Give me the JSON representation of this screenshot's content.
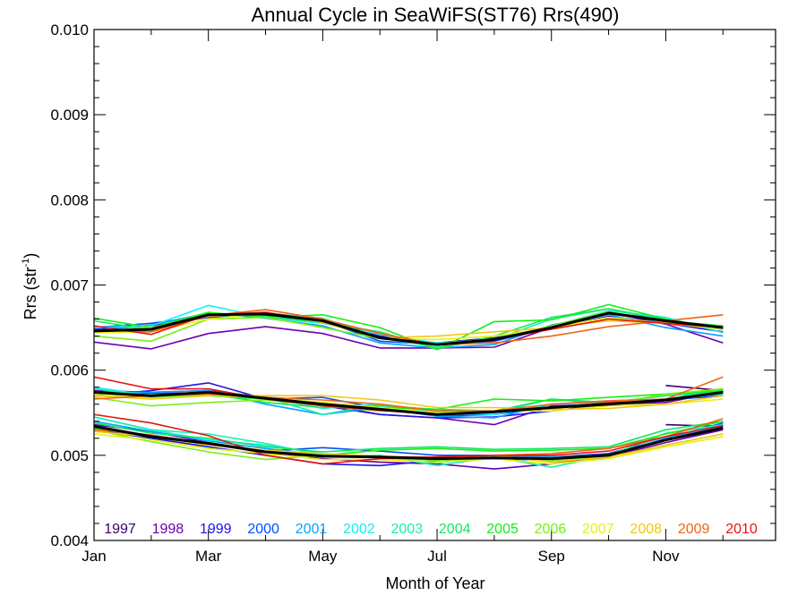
{
  "chart_data": {
    "type": "line",
    "title": "Annual Cycle in SeaWiFS(ST76) Rrs(490)",
    "xlabel": "Month of Year",
    "ylabel": "Rrs (str",
    "ylabel_superscript": "-1",
    "ylabel_close": ")",
    "xlim": [
      1,
      12.92
    ],
    "ylim": [
      0.004,
      0.01
    ],
    "x_ticks": [
      1,
      3,
      5,
      7,
      9,
      11
    ],
    "x_tick_labels": [
      "Jan",
      "Mar",
      "May",
      "Jul",
      "Sep",
      "Nov"
    ],
    "y_ticks": [
      0.004,
      0.005,
      0.006,
      0.007,
      0.008,
      0.009,
      0.01
    ],
    "y_tick_labels": [
      "0.004",
      "0.005",
      "0.006",
      "0.007",
      "0.008",
      "0.009",
      "0.010"
    ],
    "grid": false,
    "legend_placement": "bottom inside plot",
    "years": [
      "1997",
      "1998",
      "1999",
      "2000",
      "2001",
      "2002",
      "2003",
      "2004",
      "2005",
      "2006",
      "2007",
      "2008",
      "2009",
      "2010"
    ],
    "year_colors": [
      "#3c0070",
      "#6a00b0",
      "#1e14e6",
      "#0050ff",
      "#0aa0ff",
      "#14f0f0",
      "#14f0b4",
      "#14e664",
      "#14f014",
      "#78f014",
      "#e6f014",
      "#f0c814",
      "#f06414",
      "#e61414"
    ],
    "x": [
      1,
      2,
      3,
      4,
      5,
      6,
      7,
      8,
      9,
      10,
      11,
      12
    ],
    "groups": [
      {
        "mean": [
          0.00646,
          0.00648,
          0.00665,
          0.00666,
          0.00658,
          0.00638,
          0.0063,
          0.00636,
          0.0065,
          0.00667,
          0.00658,
          0.0065
        ],
        "series": [
          {
            "year": "1998",
            "values": [
              0.00633,
              0.00625,
              0.00643,
              0.00651,
              0.00643,
              0.00626,
              0.00626,
              0.00627,
              0.0065,
              0.00668,
              0.00654,
              0.00632
            ]
          },
          {
            "year": "1999",
            "values": [
              0.00648,
              0.00652,
              0.00662,
              0.00665,
              0.0066,
              0.0064,
              0.00632,
              0.00638,
              0.0065,
              0.00663,
              0.00655,
              0.00645
            ]
          },
          {
            "year": "2000",
            "values": [
              0.0065,
              0.00655,
              0.00664,
              0.00664,
              0.00658,
              0.00634,
              0.0063,
              0.00634,
              0.0065,
              0.00668,
              0.00656,
              0.00648
            ]
          },
          {
            "year": "2001",
            "values": [
              0.00646,
              0.00653,
              0.00667,
              0.00661,
              0.00652,
              0.00632,
              0.00626,
              0.0063,
              0.00653,
              0.00665,
              0.0065,
              0.0064
            ]
          },
          {
            "year": "2002",
            "values": [
              0.0065,
              0.00652,
              0.00676,
              0.00662,
              0.00655,
              0.00642,
              0.00632,
              0.00636,
              0.00652,
              0.0067,
              0.00662,
              0.00644
            ]
          },
          {
            "year": "2003",
            "values": [
              0.00644,
              0.00647,
              0.00665,
              0.00667,
              0.00661,
              0.00638,
              0.00627,
              0.00636,
              0.0066,
              0.00672,
              0.0066,
              0.00648
            ]
          },
          {
            "year": "2004",
            "values": [
              0.00658,
              0.00647,
              0.00667,
              0.00663,
              0.00656,
              0.00645,
              0.00625,
              0.0064,
              0.00662,
              0.00672,
              0.00658,
              0.00652
            ]
          },
          {
            "year": "2005",
            "values": [
              0.00661,
              0.0065,
              0.00668,
              0.00662,
              0.00665,
              0.0065,
              0.00624,
              0.00657,
              0.00659,
              0.00677,
              0.0066,
              0.00648
            ]
          },
          {
            "year": "2006",
            "values": [
              0.0064,
              0.00634,
              0.0066,
              0.00662,
              0.0065,
              0.00637,
              0.00631,
              0.00637,
              0.00652,
              0.00669,
              0.00656,
              0.00648
            ]
          },
          {
            "year": "2007",
            "values": [
              0.00644,
              0.00645,
              0.0066,
              0.00667,
              0.00657,
              0.00637,
              0.00636,
              0.0064,
              0.0065,
              0.00662,
              0.00655,
              0.00648
            ]
          },
          {
            "year": "2008",
            "values": [
              0.00645,
              0.0065,
              0.00663,
              0.00668,
              0.00656,
              0.00638,
              0.0064,
              0.00645,
              0.0065,
              0.00658,
              0.00655,
              0.0065
            ]
          },
          {
            "year": "2009",
            "values": [
              0.00647,
              0.00645,
              0.00664,
              0.00671,
              0.0066,
              0.00643,
              0.0063,
              0.00632,
              0.0064,
              0.00651,
              0.00658,
              0.00665
            ]
          },
          {
            "year": "2010",
            "values": [
              0.00652,
              0.00642,
              0.00665,
              0.00668,
              0.00658,
              0.00638,
              0.0063,
              0.00636,
              0.00648,
              0.0066,
              0.00655,
              0.0065
            ]
          }
        ]
      },
      {
        "mean": [
          0.00574,
          0.0057,
          0.00574,
          0.00567,
          0.0056,
          0.00554,
          0.00548,
          0.00551,
          0.00556,
          0.0056,
          0.00565,
          0.00574
        ],
        "series": [
          {
            "year": "1997",
            "values": [
              null,
              null,
              null,
              null,
              null,
              null,
              null,
              null,
              null,
              null,
              0.00582,
              0.00576
            ]
          },
          {
            "year": "1998",
            "values": [
              0.00576,
              0.00574,
              0.00576,
              0.00568,
              0.00558,
              0.00548,
              0.00544,
              0.00536,
              0.00558,
              0.0056,
              0.00562,
              0.00575
            ]
          },
          {
            "year": "1999",
            "values": [
              0.0057,
              0.00576,
              0.00585,
              0.00566,
              0.0056,
              0.00548,
              0.00544,
              0.00545,
              0.00552,
              0.0056,
              0.00565,
              0.0057
            ]
          },
          {
            "year": "2000",
            "values": [
              0.00573,
              0.00573,
              0.00573,
              0.00566,
              0.00568,
              0.00555,
              0.00546,
              0.00548,
              0.00556,
              0.00562,
              0.00566,
              0.00572
            ]
          },
          {
            "year": "2001",
            "values": [
              0.00574,
              0.00574,
              0.00576,
              0.0056,
              0.00548,
              0.00556,
              0.00546,
              0.00544,
              0.0056,
              0.00564,
              0.00566,
              0.00572
            ]
          },
          {
            "year": "2002",
            "values": [
              0.0058,
              0.0057,
              0.00575,
              0.00568,
              0.00555,
              0.0056,
              0.0055,
              0.00548,
              0.0056,
              0.00562,
              0.00565,
              0.00572
            ]
          },
          {
            "year": "2003",
            "values": [
              0.00578,
              0.0057,
              0.00572,
              0.00568,
              0.00548,
              0.0056,
              0.00552,
              0.0055,
              0.00566,
              0.0056,
              0.00566,
              0.00578
            ]
          },
          {
            "year": "2004",
            "values": [
              0.00573,
              0.00568,
              0.00572,
              0.00562,
              0.00556,
              0.00558,
              0.00554,
              0.00552,
              0.00566,
              0.00562,
              0.0057,
              0.00575
            ]
          },
          {
            "year": "2005",
            "values": [
              0.00574,
              0.0057,
              0.0057,
              0.00566,
              0.00562,
              0.00556,
              0.00554,
              0.00566,
              0.00564,
              0.00568,
              0.00572,
              0.00576
            ]
          },
          {
            "year": "2006",
            "values": [
              0.00568,
              0.00558,
              0.00562,
              0.00565,
              0.00558,
              0.00552,
              0.0055,
              0.00552,
              0.00556,
              0.0056,
              0.00572,
              0.00578
            ]
          },
          {
            "year": "2007",
            "values": [
              0.00572,
              0.00567,
              0.0057,
              0.00568,
              0.00562,
              0.00556,
              0.0055,
              0.00552,
              0.00552,
              0.00558,
              0.0056,
              0.00566
            ]
          },
          {
            "year": "2008",
            "values": [
              0.0057,
              0.00566,
              0.0057,
              0.0057,
              0.0057,
              0.00565,
              0.00556,
              0.00556,
              0.00554,
              0.00555,
              0.0056,
              0.0057
            ]
          },
          {
            "year": "2009",
            "values": [
              0.00566,
              0.0057,
              0.00572,
              0.00568,
              0.00565,
              0.0056,
              0.00552,
              0.00552,
              0.0056,
              0.00564,
              0.00566,
              0.00592
            ]
          },
          {
            "year": "2010",
            "values": [
              0.00592,
              0.00578,
              0.00578,
              0.00566,
              0.00558,
              0.00553,
              0.00548,
              0.00552,
              0.00556,
              0.00562,
              0.00564,
              0.00575
            ]
          }
        ]
      },
      {
        "mean": [
          0.00534,
          0.00522,
          0.00514,
          0.00504,
          0.00499,
          0.00498,
          0.00496,
          0.00497,
          0.00496,
          0.005,
          0.00518,
          0.00532
        ],
        "series": [
          {
            "year": "1997",
            "values": [
              null,
              null,
              null,
              null,
              null,
              null,
              null,
              null,
              null,
              null,
              0.00536,
              0.00534
            ]
          },
          {
            "year": "1998",
            "values": [
              0.00536,
              0.00528,
              0.00515,
              0.00502,
              0.00496,
              0.00492,
              0.0049,
              0.00484,
              0.0049,
              0.00498,
              0.00515,
              0.0053
            ]
          },
          {
            "year": "1999",
            "values": [
              0.0053,
              0.0052,
              0.0051,
              0.005,
              0.0049,
              0.00488,
              0.00494,
              0.00496,
              0.00494,
              0.00502,
              0.0052,
              0.00534
            ]
          },
          {
            "year": "2000",
            "values": [
              0.00535,
              0.00522,
              0.00514,
              0.00505,
              0.00509,
              0.00505,
              0.005,
              0.005,
              0.00498,
              0.00502,
              0.0052,
              0.00538
            ]
          },
          {
            "year": "2001",
            "values": [
              0.0054,
              0.00528,
              0.00517,
              0.00508,
              0.005,
              0.00498,
              0.00495,
              0.005,
              0.00498,
              0.005,
              0.0052,
              0.00535
            ]
          },
          {
            "year": "2002",
            "values": [
              0.00545,
              0.0053,
              0.00518,
              0.00512,
              0.00502,
              0.00497,
              0.00491,
              0.00498,
              0.00493,
              0.00498,
              0.00522,
              0.00536
            ]
          },
          {
            "year": "2003",
            "values": [
              0.00545,
              0.0053,
              0.00525,
              0.00514,
              0.005,
              0.005,
              0.00488,
              0.00498,
              0.00486,
              0.005,
              0.00526,
              0.00536
            ]
          },
          {
            "year": "2004",
            "values": [
              0.00538,
              0.00526,
              0.0052,
              0.0051,
              0.00504,
              0.00508,
              0.0051,
              0.00507,
              0.00508,
              0.0051,
              0.0053,
              0.0054
            ]
          },
          {
            "year": "2005",
            "values": [
              0.00532,
              0.00522,
              0.00515,
              0.00505,
              0.005,
              0.00506,
              0.00508,
              0.00505,
              0.00506,
              0.00508,
              0.00525,
              0.0054
            ]
          },
          {
            "year": "2006",
            "values": [
              0.0053,
              0.00516,
              0.00504,
              0.00495,
              0.005,
              0.00497,
              0.00494,
              0.00497,
              0.00494,
              0.00498,
              0.00512,
              0.00525
            ]
          },
          {
            "year": "2007",
            "values": [
              0.00525,
              0.00518,
              0.00508,
              0.00502,
              0.00495,
              0.00495,
              0.00492,
              0.00496,
              0.0049,
              0.00496,
              0.0051,
              0.00522
            ]
          },
          {
            "year": "2008",
            "values": [
              0.00528,
              0.00522,
              0.00512,
              0.00506,
              0.00502,
              0.00499,
              0.00497,
              0.005,
              0.00492,
              0.00498,
              0.00512,
              0.00525
            ]
          },
          {
            "year": "2009",
            "values": [
              0.0053,
              0.00524,
              0.00514,
              0.00504,
              0.00498,
              0.00498,
              0.00498,
              0.005,
              0.00502,
              0.00508,
              0.00522,
              0.00543
            ]
          },
          {
            "year": "2010",
            "values": [
              0.00548,
              0.00538,
              0.00523,
              0.005,
              0.0049,
              0.00496,
              0.00498,
              0.005,
              0.005,
              0.00505,
              0.00522,
              0.00535
            ]
          }
        ]
      }
    ]
  }
}
